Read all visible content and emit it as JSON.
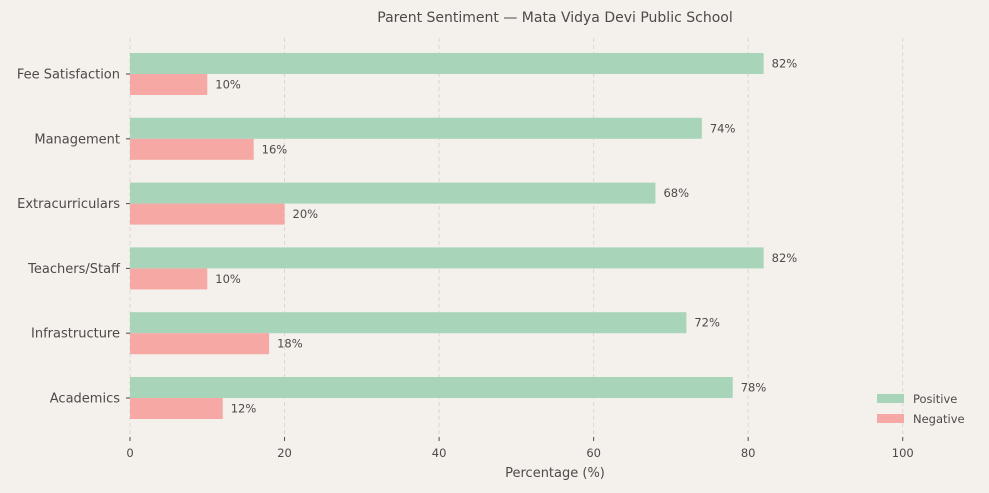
{
  "chart_data": {
    "type": "bar",
    "orientation": "horizontal",
    "title": "Parent Sentiment — Mata Vidya Devi Public School",
    "xlabel": "Percentage (%)",
    "ylabel": "",
    "xlim": [
      0,
      110
    ],
    "xticks": [
      0,
      20,
      40,
      60,
      80,
      100
    ],
    "grid": "x dashed",
    "legend_position": "lower-right",
    "categories": [
      "Academics",
      "Infrastructure",
      "Teachers/Staff",
      "Extracurriculars",
      "Management",
      "Fee Satisfaction"
    ],
    "series": [
      {
        "name": "Positive",
        "color": "#a8d5ba",
        "values": [
          78,
          72,
          82,
          68,
          74,
          82
        ]
      },
      {
        "name": "Negative",
        "color": "#f5a8a4",
        "values": [
          12,
          18,
          10,
          20,
          16,
          10
        ]
      }
    ],
    "value_suffix": "%"
  }
}
